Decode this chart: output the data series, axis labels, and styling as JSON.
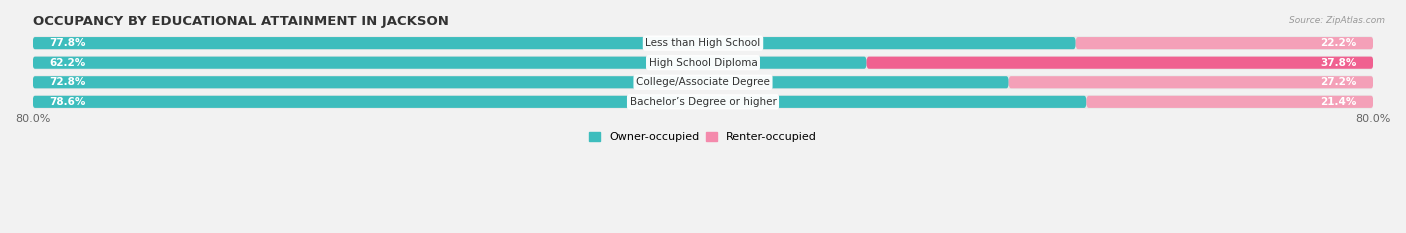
{
  "title": "OCCUPANCY BY EDUCATIONAL ATTAINMENT IN JACKSON",
  "source": "Source: ZipAtlas.com",
  "categories": [
    "Less than High School",
    "High School Diploma",
    "College/Associate Degree",
    "Bachelor’s Degree or higher"
  ],
  "owner_values": [
    77.8,
    62.2,
    72.8,
    78.6
  ],
  "renter_values": [
    22.2,
    37.8,
    27.2,
    21.4
  ],
  "owner_color": "#3dbdbd",
  "renter_color_1": "#f4a0b8",
  "renter_color_2": "#f06090",
  "renter_colors": [
    "#f4a0b8",
    "#f06090",
    "#f4a0b8",
    "#f4a0b8"
  ],
  "bar_height": 0.62,
  "row_bg_color": "#e8e8e8",
  "xlim_left": -80.0,
  "xlim_right": 80.0,
  "background_color": "#f2f2f2",
  "title_fontsize": 9.5,
  "label_fontsize": 7.5,
  "pct_fontsize": 7.5,
  "tick_fontsize": 8,
  "legend_fontsize": 8
}
